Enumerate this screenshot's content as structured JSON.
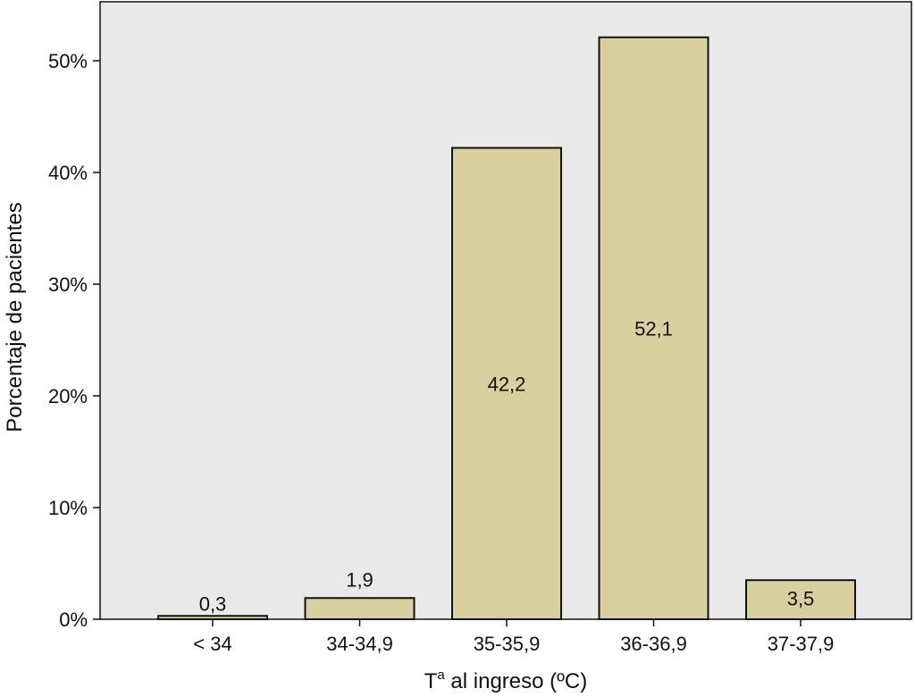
{
  "chart_data": {
    "type": "bar",
    "categories": [
      "< 34",
      "34-34,9",
      "35-35,9",
      "36-36,9",
      "37-37,9"
    ],
    "values": [
      0.3,
      1.9,
      42.2,
      52.1,
      3.5
    ],
    "data_labels": [
      "0,3",
      "1,9",
      "42,2",
      "52,1",
      "3,5"
    ],
    "ylim": [
      0,
      55
    ],
    "yticks": [
      0,
      10,
      20,
      30,
      40,
      50
    ],
    "ytick_labels": [
      "0%",
      "10%",
      "20%",
      "30%",
      "40%",
      "50%"
    ],
    "xlabel": "Tª al ingreso (ºC)",
    "ylabel": "Porcentaje de pacientes",
    "grid": false,
    "colors": {
      "bar": "#dacf9f",
      "bar_stroke": "#111111",
      "plot_bg": "#e9e9e9"
    }
  }
}
